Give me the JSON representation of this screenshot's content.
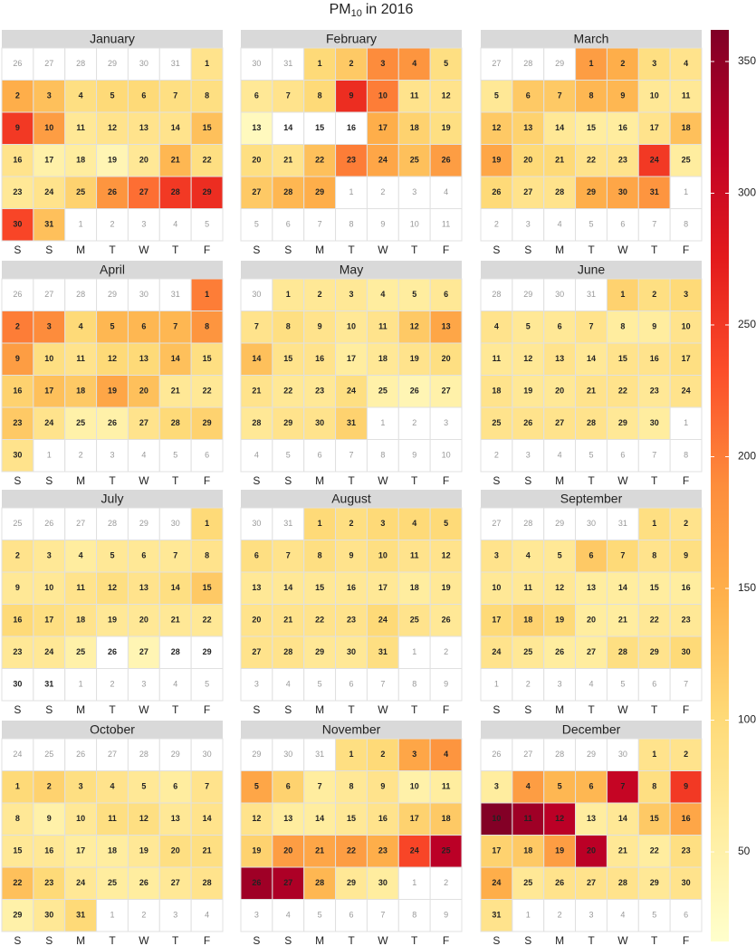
{
  "chart_data": {
    "type": "calendar",
    "title": {
      "text": "PM",
      "subscript": "10",
      "suffix": "in 2016"
    },
    "weekdays": [
      "S",
      "S",
      "M",
      "T",
      "W",
      "T",
      "F"
    ],
    "clim": [
      16,
      362
    ],
    "cticks": [
      50,
      100,
      150,
      200,
      250,
      300,
      350
    ],
    "colors": [
      "#ffffcc",
      "#ffeda0",
      "#fed976",
      "#feb24c",
      "#fd8d3c",
      "#fc4e2a",
      "#e31a1c",
      "#bd0026",
      "#800026"
    ],
    "months": [
      {
        "name": "January",
        "lead": [
          26,
          27,
          28,
          29,
          30,
          31
        ],
        "dates": [
          1,
          2,
          3,
          4,
          5,
          6,
          7,
          8,
          9,
          10,
          11,
          12,
          13,
          14,
          15,
          16,
          17,
          18,
          19,
          20,
          21,
          22,
          23,
          24,
          25,
          26,
          27,
          28,
          29,
          30,
          31
        ],
        "values": [
          80,
          150,
          130,
          90,
          100,
          100,
          90,
          90,
          250,
          170,
          70,
          80,
          80,
          80,
          130,
          80,
          50,
          60,
          40,
          70,
          140,
          90,
          70,
          80,
          110,
          180,
          210,
          250,
          260,
          240,
          130
        ],
        "trail": [
          1,
          2,
          3,
          4,
          5
        ]
      },
      {
        "name": "February",
        "lead": [
          30,
          31
        ],
        "dates": [
          1,
          2,
          3,
          4,
          5,
          6,
          7,
          8,
          9,
          10,
          11,
          12,
          13,
          14,
          15,
          16,
          17,
          18,
          19,
          20,
          21,
          22,
          23,
          24,
          25,
          26,
          27,
          28,
          29
        ],
        "values": [
          100,
          120,
          190,
          180,
          90,
          70,
          80,
          100,
          260,
          200,
          80,
          80,
          30,
          null,
          null,
          null,
          150,
          110,
          90,
          90,
          80,
          130,
          200,
          160,
          130,
          170,
          120,
          140,
          150
        ],
        "trail": [
          1,
          2,
          3,
          4,
          5,
          6,
          7,
          8,
          9,
          10,
          11
        ]
      },
      {
        "name": "March",
        "lead": [
          27,
          28,
          29
        ],
        "dates": [
          1,
          2,
          3,
          4,
          5,
          6,
          7,
          8,
          9,
          10,
          11,
          12,
          13,
          14,
          15,
          16,
          17,
          18,
          19,
          20,
          21,
          22,
          23,
          24,
          25,
          26,
          27,
          28,
          29,
          30,
          31
        ],
        "values": [
          170,
          150,
          90,
          80,
          70,
          120,
          120,
          140,
          140,
          70,
          70,
          120,
          110,
          70,
          60,
          60,
          80,
          130,
          160,
          100,
          100,
          80,
          80,
          250,
          60,
          100,
          80,
          80,
          150,
          160,
          180
        ],
        "trail": [
          1,
          2,
          3,
          4,
          5,
          6,
          7,
          8
        ]
      },
      {
        "name": "April",
        "lead": [
          26,
          27,
          28,
          29,
          30,
          31
        ],
        "dates": [
          1,
          2,
          3,
          4,
          5,
          6,
          7,
          8,
          9,
          10,
          11,
          12,
          13,
          14,
          15,
          16,
          17,
          18,
          19,
          20,
          21,
          22,
          23,
          24,
          25,
          26,
          27,
          28,
          29,
          30
        ],
        "values": [
          200,
          200,
          190,
          100,
          140,
          140,
          140,
          180,
          170,
          90,
          80,
          100,
          100,
          130,
          90,
          110,
          130,
          120,
          160,
          130,
          70,
          70,
          120,
          80,
          50,
          50,
          80,
          100,
          110,
          80
        ],
        "trail": [
          1,
          2,
          3,
          4,
          5,
          6
        ]
      },
      {
        "name": "May",
        "lead": [
          30
        ],
        "dates": [
          1,
          2,
          3,
          4,
          5,
          6,
          7,
          8,
          9,
          10,
          11,
          12,
          13,
          14,
          15,
          16,
          17,
          18,
          19,
          20,
          21,
          22,
          23,
          24,
          25,
          26,
          27,
          28,
          29,
          30,
          31
        ],
        "values": [
          70,
          70,
          70,
          60,
          60,
          70,
          80,
          90,
          80,
          70,
          80,
          120,
          160,
          130,
          80,
          80,
          60,
          70,
          80,
          90,
          80,
          70,
          70,
          90,
          50,
          40,
          50,
          70,
          80,
          80,
          110
        ],
        "trail": [
          1,
          2,
          3,
          4,
          5,
          6,
          7,
          8,
          9,
          10
        ]
      },
      {
        "name": "June",
        "lead": [
          28,
          29,
          30,
          31
        ],
        "dates": [
          1,
          2,
          3,
          4,
          5,
          6,
          7,
          8,
          9,
          10,
          11,
          12,
          13,
          14,
          15,
          16,
          17,
          18,
          19,
          20,
          21,
          22,
          23,
          24,
          25,
          26,
          27,
          28,
          29,
          30
        ],
        "values": [
          110,
          90,
          100,
          80,
          70,
          70,
          80,
          60,
          60,
          80,
          70,
          70,
          80,
          70,
          80,
          80,
          90,
          80,
          70,
          70,
          80,
          80,
          70,
          80,
          80,
          80,
          80,
          80,
          70,
          60
        ],
        "trail": [
          1,
          2,
          3,
          4,
          5,
          6,
          7,
          8
        ]
      },
      {
        "name": "July",
        "lead": [
          25,
          26,
          27,
          28,
          29,
          30
        ],
        "dates": [
          1,
          2,
          3,
          4,
          5,
          6,
          7,
          8,
          9,
          10,
          11,
          12,
          13,
          14,
          15,
          16,
          17,
          18,
          19,
          20,
          21,
          22,
          23,
          24,
          25,
          26,
          27,
          28,
          29,
          30,
          31
        ],
        "values": [
          100,
          80,
          70,
          60,
          70,
          70,
          70,
          80,
          70,
          70,
          80,
          90,
          80,
          90,
          120,
          100,
          90,
          80,
          70,
          70,
          70,
          70,
          70,
          70,
          50,
          null,
          40,
          null,
          null,
          null,
          null
        ],
        "trail": [
          1,
          2,
          3,
          4,
          5
        ]
      },
      {
        "name": "August",
        "lead": [
          30,
          31
        ],
        "dates": [
          1,
          2,
          3,
          4,
          5,
          6,
          7,
          8,
          9,
          10,
          11,
          12,
          13,
          14,
          15,
          16,
          17,
          18,
          19,
          20,
          21,
          22,
          23,
          24,
          25,
          26,
          27,
          28,
          29,
          30,
          31
        ],
        "values": [
          100,
          90,
          100,
          100,
          100,
          90,
          80,
          90,
          80,
          90,
          80,
          80,
          70,
          70,
          70,
          70,
          70,
          60,
          70,
          80,
          80,
          80,
          80,
          100,
          80,
          70,
          80,
          80,
          70,
          70,
          90
        ],
        "trail": [
          1,
          2,
          3,
          4,
          5,
          6,
          7,
          8,
          9
        ]
      },
      {
        "name": "September",
        "lead": [
          27,
          28,
          29,
          30,
          31
        ],
        "dates": [
          1,
          2,
          3,
          4,
          5,
          6,
          7,
          8,
          9,
          10,
          11,
          12,
          13,
          14,
          15,
          16,
          17,
          18,
          19,
          20,
          21,
          22,
          23,
          24,
          25,
          26,
          27,
          28,
          29,
          30
        ],
        "values": [
          90,
          80,
          80,
          70,
          70,
          120,
          100,
          80,
          90,
          70,
          70,
          70,
          60,
          60,
          60,
          60,
          100,
          110,
          100,
          60,
          60,
          70,
          70,
          80,
          70,
          60,
          60,
          90,
          80,
          100
        ],
        "trail": [
          1,
          2,
          3,
          4,
          5,
          6,
          7
        ]
      },
      {
        "name": "October",
        "lead": [
          24,
          25,
          26,
          27,
          28,
          29,
          30
        ],
        "dates": [
          1,
          2,
          3,
          4,
          5,
          6,
          7,
          8,
          9,
          10,
          11,
          12,
          13,
          14,
          15,
          16,
          17,
          18,
          19,
          20,
          21,
          22,
          23,
          24,
          25,
          26,
          27,
          28,
          29,
          30,
          31
        ],
        "values": [
          100,
          110,
          90,
          80,
          70,
          60,
          80,
          70,
          50,
          70,
          90,
          90,
          70,
          80,
          70,
          70,
          60,
          60,
          70,
          90,
          90,
          130,
          100,
          70,
          60,
          60,
          70,
          80,
          50,
          70,
          100
        ],
        "trail": [
          1,
          2,
          3,
          4
        ]
      },
      {
        "name": "November",
        "lead": [
          29,
          30,
          31
        ],
        "dates": [
          1,
          2,
          3,
          4,
          5,
          6,
          7,
          8,
          9,
          10,
          11,
          12,
          13,
          14,
          15,
          16,
          17,
          18,
          19,
          20,
          21,
          22,
          23,
          24,
          25,
          26,
          27,
          28,
          29,
          30
        ],
        "values": [
          90,
          100,
          160,
          180,
          160,
          110,
          60,
          70,
          80,
          50,
          60,
          80,
          60,
          60,
          70,
          80,
          110,
          120,
          110,
          170,
          160,
          170,
          150,
          240,
          320,
          340,
          330,
          140,
          70,
          60
        ],
        "trail": [
          1,
          2,
          3,
          4,
          5,
          6,
          7,
          8,
          9
        ]
      },
      {
        "name": "December",
        "lead": [
          26,
          27,
          28,
          29,
          30
        ],
        "dates": [
          1,
          2,
          3,
          4,
          5,
          6,
          7,
          8,
          9,
          10,
          11,
          12,
          13,
          14,
          15,
          16,
          17,
          18,
          19,
          20,
          21,
          22,
          23,
          24,
          25,
          26,
          27,
          28,
          29,
          30,
          31
        ],
        "values": [
          80,
          80,
          60,
          170,
          140,
          140,
          310,
          90,
          250,
          360,
          340,
          320,
          60,
          70,
          120,
          160,
          110,
          120,
          170,
          320,
          70,
          60,
          90,
          150,
          70,
          80,
          80,
          80,
          70,
          80,
          80
        ],
        "trail": [
          1,
          2,
          3,
          4,
          5,
          6
        ]
      }
    ]
  }
}
